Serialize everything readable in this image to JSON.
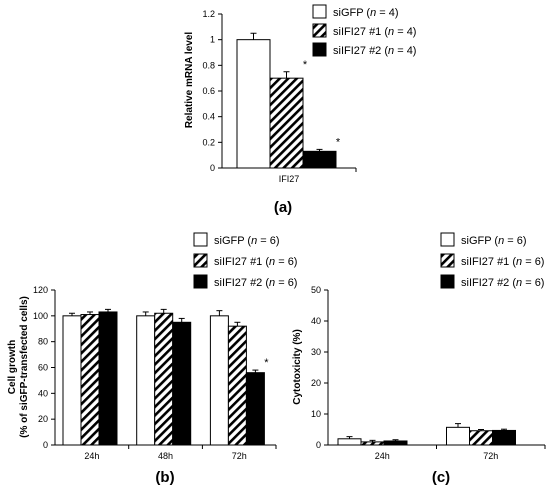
{
  "chart_data": [
    {
      "type": "bar",
      "panel_label": "(a)",
      "ylabel": "Relative mRNA level",
      "xlabel": "",
      "ylim": [
        0,
        1.2
      ],
      "yticks": [
        "0",
        "0.2",
        "0.4",
        "0.6",
        "0.8",
        "1",
        "1.2"
      ],
      "categories": [
        "IFI27"
      ],
      "series": [
        {
          "name": "siGFP (n = 4)",
          "values": [
            1.0
          ],
          "errors": [
            0.05
          ],
          "marks": [
            ""
          ]
        },
        {
          "name": "siIFI27 #1 (n = 4)",
          "values": [
            0.7
          ],
          "errors": [
            0.05
          ],
          "marks": [
            "*"
          ]
        },
        {
          "name": "siIFI27 #2 (n = 4)",
          "values": [
            0.13
          ],
          "errors": [
            0.015
          ],
          "marks": [
            "*"
          ]
        }
      ],
      "legend": "top-right",
      "grid": false
    },
    {
      "type": "bar",
      "panel_label": "(b)",
      "ylabel": "Cell growth",
      "ylabel2": "(% of siGFP-transfected cells)",
      "xlabel": "",
      "ylim": [
        0,
        120
      ],
      "yticks": [
        "0",
        "20",
        "40",
        "60",
        "80",
        "100",
        "120"
      ],
      "categories": [
        "24h",
        "48h",
        "72h"
      ],
      "series": [
        {
          "name": "siGFP (n = 6)",
          "values": [
            100,
            100,
            100
          ],
          "errors": [
            2,
            3,
            4
          ],
          "marks": [
            "",
            "",
            ""
          ]
        },
        {
          "name": "siIFI27 #1 (n = 6)",
          "values": [
            101,
            102,
            92
          ],
          "errors": [
            2,
            3,
            3
          ],
          "marks": [
            "",
            "",
            ""
          ]
        },
        {
          "name": "siIFI27 #2 (n = 6)",
          "values": [
            103,
            95,
            56
          ],
          "errors": [
            2,
            3,
            2
          ],
          "marks": [
            "",
            "",
            "*"
          ]
        }
      ],
      "legend": "top-right",
      "grid": false
    },
    {
      "type": "bar",
      "panel_label": "(c)",
      "ylabel": "Cytotoxicity (%)",
      "xlabel": "",
      "ylim": [
        0,
        50
      ],
      "yticks": [
        "0",
        "10",
        "20",
        "30",
        "40",
        "50"
      ],
      "categories": [
        "24h",
        "72h"
      ],
      "series": [
        {
          "name": "siGFP (n = 6)",
          "values": [
            2.0,
            5.7
          ],
          "errors": [
            0.7,
            1.2
          ],
          "marks": [
            "",
            ""
          ]
        },
        {
          "name": "siIFI27 #1 (n = 6)",
          "values": [
            1.0,
            4.6
          ],
          "errors": [
            0.5,
            0.4
          ],
          "marks": [
            "",
            ""
          ]
        },
        {
          "name": "siIFI27 #2 (n = 6)",
          "values": [
            1.3,
            4.7
          ],
          "errors": [
            0.4,
            0.4
          ],
          "marks": [
            "",
            ""
          ]
        }
      ],
      "legend": "top-right",
      "grid": false
    }
  ]
}
